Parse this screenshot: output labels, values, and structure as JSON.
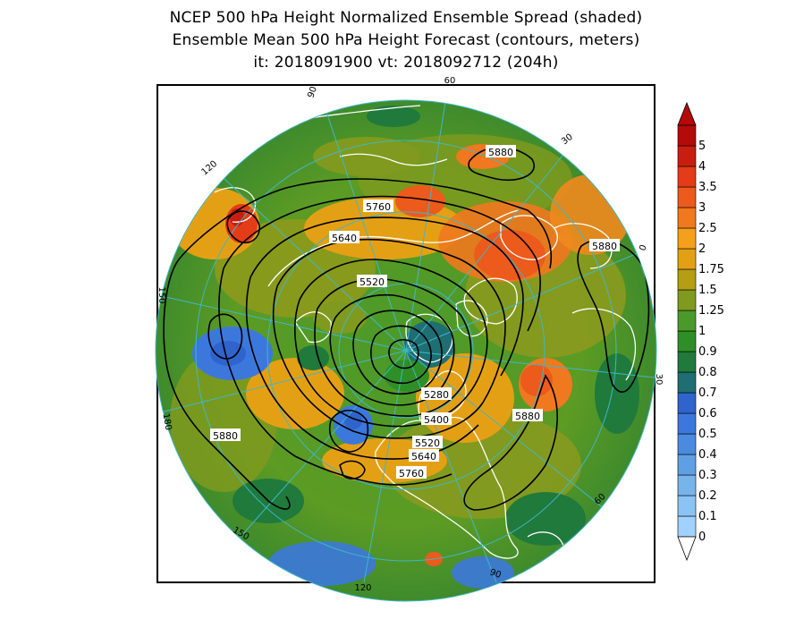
{
  "title": {
    "line1": "NCEP 500 hPa Height Normalized Ensemble Spread (shaded)",
    "line2": "Ensemble Mean 500 hPa Height Forecast (contours, meters)",
    "line3": "it: 2018091900      vt: 2018092712 (204h)"
  },
  "colorbar": {
    "labels": [
      "0",
      "0.1",
      "0.2",
      "0.3",
      "0.4",
      "0.5",
      "0.6",
      "0.7",
      "0.8",
      "0.9",
      "1",
      "1.25",
      "1.5",
      "1.75",
      "2",
      "2.5",
      "3",
      "3.5",
      "4",
      "5"
    ],
    "colors": [
      "#a0d2ff",
      "#8cc3f5",
      "#78b4ec",
      "#5fa0e4",
      "#4a8be0",
      "#3c78dc",
      "#2f64cc",
      "#1e6e73",
      "#1f7a3c",
      "#2f8f26",
      "#4a9a2a",
      "#7f9a1e",
      "#b59d14",
      "#e4a015",
      "#f5a01c",
      "#f0781e",
      "#ec5a1c",
      "#e43c16",
      "#c81e10",
      "#b40a0a"
    ],
    "over_color": "#b40a0a",
    "under_color": "#ffffff"
  },
  "map": {
    "longitude_labels": [
      "60",
      "30",
      "0",
      "30",
      "60",
      "90",
      "120",
      "150",
      "180",
      "150",
      "120",
      "90"
    ],
    "contour_labels": [
      "5880",
      "5760",
      "5640",
      "5520",
      "5880",
      "5280",
      "5400",
      "5880",
      "5880",
      "5520",
      "5640",
      "5760"
    ],
    "land_color": "#ffffff",
    "graticule_color": "#3fb7c8",
    "contour_color": "#000000"
  }
}
